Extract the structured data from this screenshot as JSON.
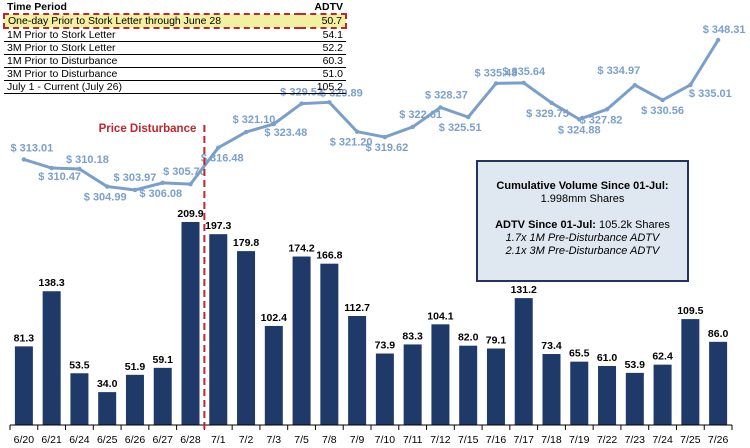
{
  "table": {
    "header": [
      "Time Period",
      "ADTV"
    ],
    "rows": [
      {
        "label": "One-day Prior to Stork Letter through June 28",
        "value": "50.7",
        "highlight": true
      },
      {
        "label": "1M Prior to Stork Letter",
        "value": "54.1"
      },
      {
        "label": "3M Prior to Stork Letter",
        "value": "52.2"
      },
      {
        "label": "1M Prior to Disturbance",
        "value": "60.3"
      },
      {
        "label": "3M Prior to Disturbance",
        "value": "51.0"
      },
      {
        "label": "July 1 - Current (July 26)",
        "value": "105.2"
      }
    ]
  },
  "summary": {
    "line1_bold": "Cumulative Volume Since 01-Jul:",
    "line2": "1.998mm Shares",
    "line3_bold": "ADTV Since 01-Jul:",
    "line3_rest": " 105.2k Shares",
    "line4": "1.7x 1M Pre-Disturbance ADTV",
    "line5": "2.1x 3M Pre-Disturbance ADTV"
  },
  "chart_data": {
    "type": "bar+line",
    "categories": [
      "6/20",
      "6/21",
      "6/24",
      "6/25",
      "6/26",
      "6/27",
      "6/28",
      "7/1",
      "7/2",
      "7/3",
      "7/5",
      "7/8",
      "7/9",
      "7/10",
      "7/11",
      "7/12",
      "7/15",
      "7/16",
      "7/17",
      "7/18",
      "7/19",
      "7/22",
      "7/23",
      "7/24",
      "7/25",
      "7/26"
    ],
    "series": [
      {
        "kind": "bar",
        "color": "#1f3969",
        "values": [
          81.3,
          138.3,
          53.5,
          34.0,
          51.9,
          59.1,
          209.9,
          197.3,
          179.8,
          102.4,
          174.2,
          166.8,
          112.7,
          73.9,
          83.3,
          104.1,
          82.0,
          79.1,
          131.2,
          73.4,
          65.5,
          61.0,
          53.9,
          62.4,
          109.5,
          86.0
        ],
        "labels": [
          "81.3",
          "138.3",
          "53.5",
          "34.0",
          "51.9",
          "59.1",
          "209.9",
          "197.3",
          "179.8",
          "102.4",
          "174.2",
          "166.8",
          "112.7",
          "73.9",
          "83.3",
          "104.1",
          "82.0",
          "79.1",
          "131.2",
          "73.4",
          "65.5",
          "61.0",
          "53.9",
          "62.4",
          "109.5",
          "86.0"
        ]
      },
      {
        "kind": "line",
        "color": "#7b9fcb",
        "values": [
          313.01,
          310.47,
          310.18,
          304.99,
          303.97,
          306.08,
          305.7,
          316.48,
          321.1,
          323.48,
          329.52,
          329.89,
          321.2,
          319.62,
          322.61,
          328.37,
          325.51,
          335.48,
          335.64,
          329.75,
          324.88,
          327.82,
          334.97,
          330.56,
          335.01,
          348.31
        ],
        "labels": [
          "$ 313.01",
          "$ 310.47",
          "$ 310.18",
          "$ 304.99",
          "$ 303.97",
          "$ 306.08",
          "$ 305.70",
          "$ 316.48",
          "$ 321.10",
          "$ 323.48",
          "$ 329.52",
          "$ 329.89",
          "$ 321.20",
          "$ 319.62",
          "$ 322.61",
          "$ 328.37",
          "$ 325.51",
          "$ 335.48",
          "$ 335.64",
          "$ 329.75",
          "$ 324.88",
          "$ 327.82",
          "$ 334.97",
          "$ 330.56",
          "$ 335.01",
          "$ 348.31"
        ]
      }
    ],
    "marker": {
      "label": "Price Disturbance",
      "between": [
        "6/28",
        "7/1"
      ],
      "color": "#c0262d"
    }
  }
}
